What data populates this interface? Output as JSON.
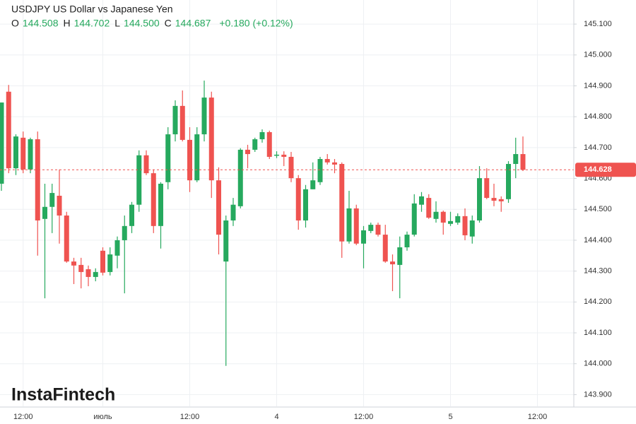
{
  "chart_data": {
    "type": "candlestick",
    "header": {
      "title": "USDJPY US Dollar vs Japanese Yen",
      "items": [
        {
          "label": "O",
          "value": "144.508"
        },
        {
          "label": "H",
          "value": "144.702"
        },
        {
          "label": "L",
          "value": "144.500"
        },
        {
          "label": "C",
          "value": "144.687"
        }
      ],
      "change": "+0.180 (+0.12%)"
    },
    "watermark": "InstaFintech",
    "up_color": "#26a95e",
    "down_color": "#ef5350",
    "categories": [
      null,
      null,
      null,
      "12:00",
      null,
      null,
      null,
      null,
      null,
      null,
      null,
      null,
      null,
      null,
      "июль",
      null,
      null,
      null,
      null,
      null,
      null,
      null,
      null,
      null,
      null,
      null,
      "12:00",
      null,
      null,
      null,
      null,
      null,
      null,
      null,
      null,
      null,
      null,
      null,
      "4",
      null,
      null,
      null,
      null,
      null,
      null,
      null,
      null,
      null,
      null,
      null,
      "12:00",
      null,
      null,
      null,
      null,
      null,
      null,
      null,
      null,
      null,
      null,
      null,
      "5",
      null,
      null,
      null,
      null,
      null,
      null,
      null,
      null,
      null,
      null,
      null,
      "12:00"
    ],
    "open": [
      144.583,
      144.881,
      144.633,
      144.732,
      144.629,
      144.727,
      144.469,
      144.508,
      144.544,
      144.48,
      144.331,
      144.32,
      144.306,
      144.281,
      144.366,
      144.297,
      144.35,
      144.4,
      144.446,
      144.515,
      144.675,
      144.617,
      144.446,
      144.588,
      144.743,
      144.835,
      144.725,
      144.594,
      144.743,
      144.862,
      144.594,
      144.331,
      144.464,
      144.51,
      144.693,
      144.693,
      144.727,
      144.75,
      144.675,
      144.677,
      144.67,
      144.601,
      144.464,
      144.565,
      144.588,
      144.663,
      144.652,
      144.647,
      144.396,
      144.503,
      144.389,
      144.43,
      144.45,
      144.418,
      144.331,
      144.32,
      144.377,
      144.418,
      144.515,
      144.537,
      144.469,
      144.492,
      144.453,
      144.457,
      144.478,
      144.412,
      144.464,
      144.601,
      144.537,
      144.533,
      144.533,
      144.647,
      144.679,
      null,
      null
    ],
    "high": [
      144.846,
      144.903,
      144.743,
      144.752,
      144.732,
      144.752,
      144.583,
      144.583,
      144.629,
      144.492,
      144.343,
      144.343,
      144.318,
      144.309,
      144.377,
      144.377,
      144.412,
      144.48,
      144.524,
      144.691,
      144.691,
      144.629,
      144.588,
      144.766,
      144.853,
      144.885,
      144.766,
      144.766,
      144.917,
      144.881,
      144.636,
      144.48,
      144.537,
      144.698,
      144.709,
      144.732,
      144.759,
      144.755,
      144.688,
      144.688,
      144.686,
      144.611,
      144.579,
      144.652,
      144.67,
      144.679,
      144.663,
      144.652,
      144.56,
      144.515,
      144.446,
      144.457,
      144.457,
      144.45,
      144.354,
      144.412,
      144.428,
      144.549,
      144.556,
      144.549,
      144.526,
      144.496,
      144.492,
      144.487,
      144.503,
      144.48,
      144.64,
      144.633,
      144.583,
      144.542,
      144.656,
      144.732,
      144.736,
      null,
      null
    ],
    "low": [
      144.56,
      144.617,
      144.611,
      144.617,
      144.617,
      144.35,
      144.212,
      144.423,
      144.389,
      144.327,
      144.258,
      144.244,
      144.251,
      144.267,
      144.286,
      144.286,
      144.309,
      144.228,
      144.423,
      144.492,
      144.611,
      144.423,
      144.373,
      144.565,
      144.72,
      144.72,
      144.556,
      144.588,
      144.72,
      144.537,
      144.354,
      143.993,
      144.446,
      144.503,
      144.633,
      144.686,
      144.716,
      144.663,
      144.666,
      144.64,
      144.588,
      144.434,
      144.441,
      144.565,
      144.579,
      144.645,
      144.617,
      144.343,
      144.389,
      144.384,
      144.309,
      144.423,
      144.412,
      144.327,
      144.235,
      144.212,
      144.366,
      144.412,
      144.492,
      144.469,
      144.457,
      144.418,
      144.446,
      144.45,
      144.4,
      144.389,
      144.457,
      144.533,
      144.51,
      144.492,
      144.521,
      144.601,
      144.624,
      null,
      null
    ],
    "close": [
      144.846,
      144.633,
      144.736,
      144.629,
      144.727,
      144.464,
      144.508,
      144.553,
      144.48,
      144.331,
      144.318,
      144.297,
      144.281,
      144.297,
      144.295,
      144.354,
      144.4,
      144.446,
      144.515,
      144.675,
      144.617,
      144.446,
      144.583,
      144.743,
      144.835,
      144.725,
      144.594,
      144.743,
      144.862,
      144.594,
      144.418,
      144.464,
      144.515,
      144.693,
      144.679,
      144.727,
      144.75,
      144.67,
      144.677,
      144.67,
      144.601,
      144.464,
      144.565,
      144.594,
      144.663,
      144.652,
      144.645,
      144.396,
      144.503,
      144.389,
      144.432,
      144.45,
      144.418,
      144.331,
      144.322,
      144.377,
      144.418,
      144.519,
      144.542,
      144.473,
      144.492,
      144.457,
      144.462,
      144.478,
      144.416,
      144.464,
      144.601,
      144.537,
      144.528,
      144.526,
      144.647,
      144.679,
      144.628,
      null,
      null
    ],
    "last_price": 144.628,
    "ylim": [
      143.862,
      145.178
    ],
    "yticks": [
      {
        "value": 145.1,
        "label": "145.100"
      },
      {
        "value": 145.0,
        "label": "145.000"
      },
      {
        "value": 144.9,
        "label": "144.900"
      },
      {
        "value": 144.8,
        "label": "144.800"
      },
      {
        "value": 144.7,
        "label": "144.700"
      },
      {
        "value": 144.6,
        "label": "144.600"
      },
      {
        "value": 144.5,
        "label": "144.500"
      },
      {
        "value": 144.4,
        "label": "144.400"
      },
      {
        "value": 144.3,
        "label": "144.300"
      },
      {
        "value": 144.2,
        "label": "144.200"
      },
      {
        "value": 144.1,
        "label": "144.100"
      },
      {
        "value": 144.0,
        "label": "144.000"
      },
      {
        "value": 143.9,
        "label": "143.900"
      }
    ],
    "grid": true
  }
}
